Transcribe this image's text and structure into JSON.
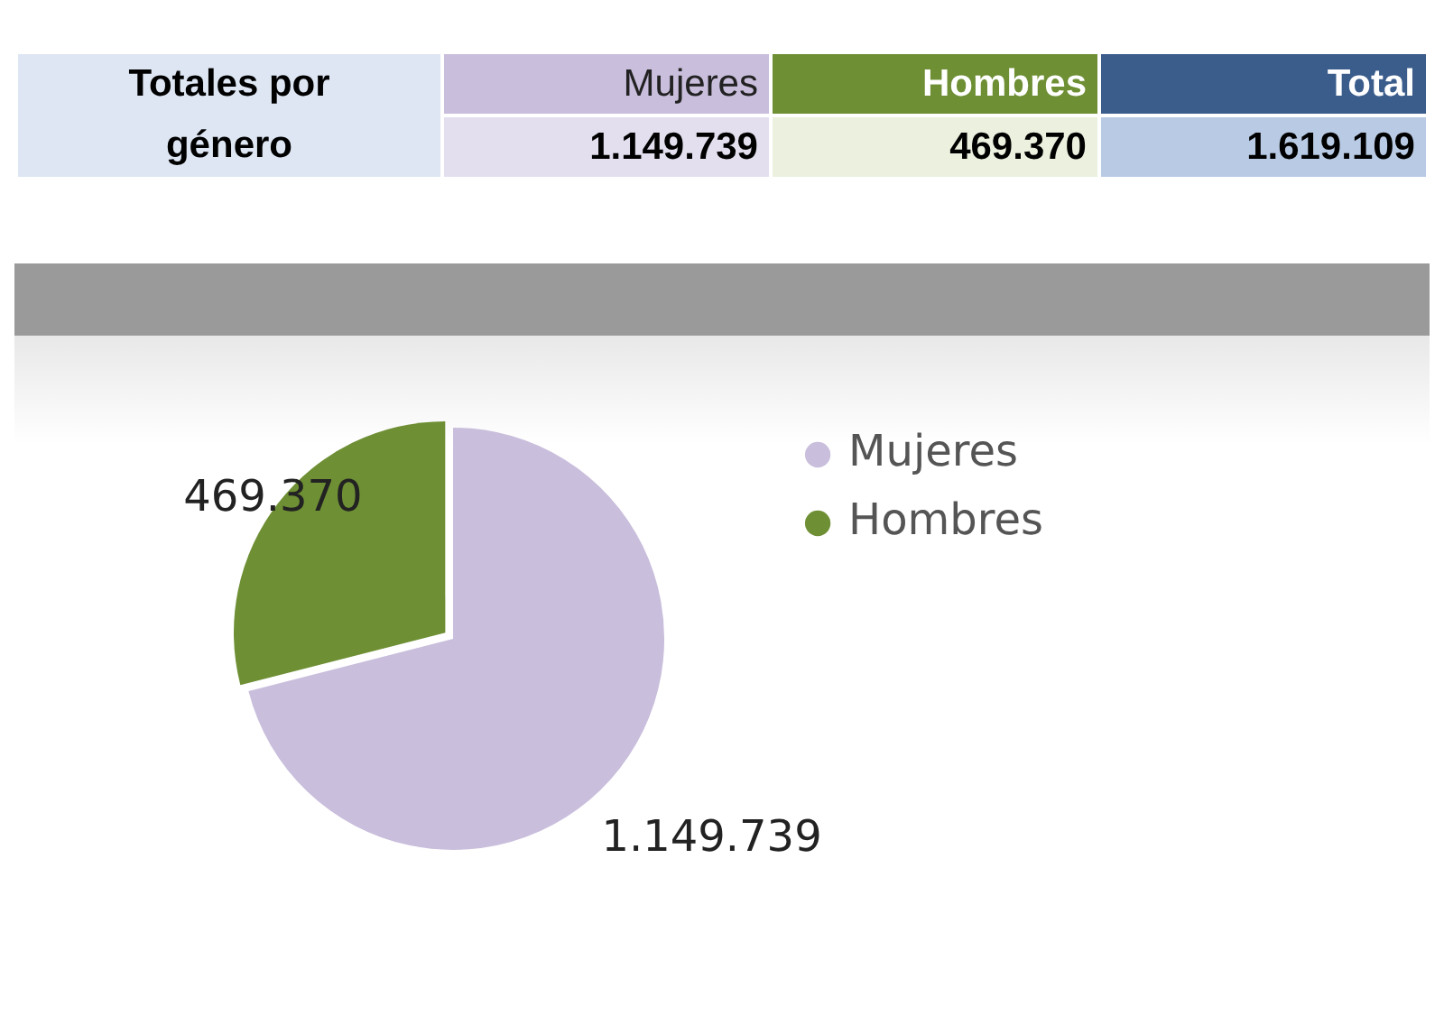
{
  "chart_data": {
    "type": "pie",
    "title": "Totales por género",
    "categories": [
      "Mujeres",
      "Hombres"
    ],
    "values": [
      1149739,
      469370
    ],
    "value_labels": [
      "1.149.739",
      "469.370"
    ],
    "colors": [
      "#c9bedc",
      "#6e8f34"
    ],
    "data_labels": true,
    "legend": "right",
    "annotations": [
      "Total",
      "1.619.109"
    ]
  }
}
